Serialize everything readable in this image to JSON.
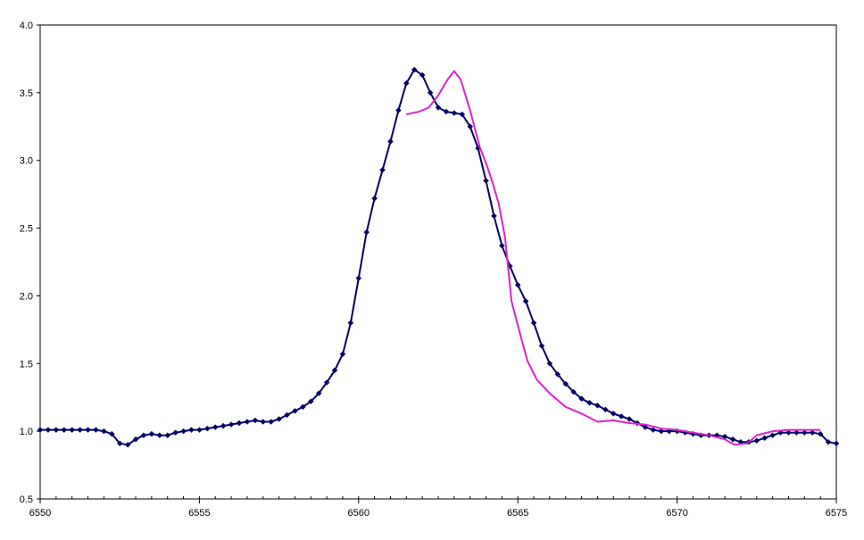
{
  "chart_data": {
    "type": "line",
    "title": "",
    "xlabel": "",
    "ylabel": "",
    "xlim": [
      6550,
      6575
    ],
    "ylim": [
      0.5,
      4.0
    ],
    "grid": false,
    "legend": "none",
    "x_ticks": [
      6550,
      6555,
      6560,
      6565,
      6570,
      6575
    ],
    "x_tick_labels": [
      "6550",
      "6555",
      "6560",
      "6565",
      "6570",
      "6575"
    ],
    "y_ticks": [
      0.5,
      1.0,
      1.5,
      2.0,
      2.5,
      3.0,
      3.5,
      4.0
    ],
    "y_tick_labels": [
      "0.5",
      "1.0",
      "1.5",
      "2.0",
      "2.5",
      "3.0",
      "3.5",
      "4.0"
    ],
    "x_minor_step": 0.5,
    "series": [
      {
        "color": "#000066",
        "markers": true,
        "points": [
          [
            6550.0,
            1.01
          ],
          [
            6550.25,
            1.01
          ],
          [
            6550.5,
            1.01
          ],
          [
            6550.75,
            1.01
          ],
          [
            6551.0,
            1.01
          ],
          [
            6551.25,
            1.01
          ],
          [
            6551.5,
            1.01
          ],
          [
            6551.75,
            1.01
          ],
          [
            6552.0,
            1.0
          ],
          [
            6552.25,
            0.98
          ],
          [
            6552.5,
            0.91
          ],
          [
            6552.75,
            0.9
          ],
          [
            6553.0,
            0.94
          ],
          [
            6553.25,
            0.97
          ],
          [
            6553.5,
            0.98
          ],
          [
            6553.75,
            0.97
          ],
          [
            6554.0,
            0.97
          ],
          [
            6554.25,
            0.99
          ],
          [
            6554.5,
            1.0
          ],
          [
            6554.75,
            1.01
          ],
          [
            6555.0,
            1.01
          ],
          [
            6555.25,
            1.02
          ],
          [
            6555.5,
            1.03
          ],
          [
            6555.75,
            1.04
          ],
          [
            6556.0,
            1.05
          ],
          [
            6556.25,
            1.06
          ],
          [
            6556.5,
            1.07
          ],
          [
            6556.75,
            1.08
          ],
          [
            6557.0,
            1.07
          ],
          [
            6557.25,
            1.07
          ],
          [
            6557.5,
            1.09
          ],
          [
            6557.75,
            1.12
          ],
          [
            6558.0,
            1.15
          ],
          [
            6558.25,
            1.18
          ],
          [
            6558.5,
            1.22
          ],
          [
            6558.75,
            1.28
          ],
          [
            6559.0,
            1.36
          ],
          [
            6559.25,
            1.45
          ],
          [
            6559.5,
            1.57
          ],
          [
            6559.75,
            1.8
          ],
          [
            6560.0,
            2.13
          ],
          [
            6560.25,
            2.47
          ],
          [
            6560.5,
            2.72
          ],
          [
            6560.75,
            2.93
          ],
          [
            6561.0,
            3.14
          ],
          [
            6561.25,
            3.37
          ],
          [
            6561.5,
            3.57
          ],
          [
            6561.75,
            3.67
          ],
          [
            6562.0,
            3.63
          ],
          [
            6562.25,
            3.5
          ],
          [
            6562.5,
            3.39
          ],
          [
            6562.75,
            3.36
          ],
          [
            6563.0,
            3.35
          ],
          [
            6563.25,
            3.34
          ],
          [
            6563.5,
            3.25
          ],
          [
            6563.75,
            3.09
          ],
          [
            6564.0,
            2.85
          ],
          [
            6564.25,
            2.59
          ],
          [
            6564.5,
            2.37
          ],
          [
            6564.75,
            2.22
          ],
          [
            6565.0,
            2.08
          ],
          [
            6565.25,
            1.96
          ],
          [
            6565.5,
            1.8
          ],
          [
            6565.75,
            1.63
          ],
          [
            6566.0,
            1.5
          ],
          [
            6566.25,
            1.42
          ],
          [
            6566.5,
            1.35
          ],
          [
            6566.75,
            1.29
          ],
          [
            6567.0,
            1.24
          ],
          [
            6567.25,
            1.21
          ],
          [
            6567.5,
            1.19
          ],
          [
            6567.75,
            1.16
          ],
          [
            6568.0,
            1.13
          ],
          [
            6568.25,
            1.11
          ],
          [
            6568.5,
            1.09
          ],
          [
            6568.75,
            1.06
          ],
          [
            6569.0,
            1.03
          ],
          [
            6569.25,
            1.01
          ],
          [
            6569.5,
            1.0
          ],
          [
            6569.75,
            1.0
          ],
          [
            6570.0,
            1.0
          ],
          [
            6570.25,
            0.99
          ],
          [
            6570.5,
            0.98
          ],
          [
            6570.75,
            0.97
          ],
          [
            6571.0,
            0.97
          ],
          [
            6571.25,
            0.97
          ],
          [
            6571.5,
            0.96
          ],
          [
            6571.75,
            0.94
          ],
          [
            6572.0,
            0.92
          ],
          [
            6572.25,
            0.92
          ],
          [
            6572.5,
            0.93
          ],
          [
            6572.75,
            0.95
          ],
          [
            6573.0,
            0.97
          ],
          [
            6573.25,
            0.99
          ],
          [
            6573.5,
            0.99
          ],
          [
            6573.75,
            0.99
          ],
          [
            6574.0,
            0.99
          ],
          [
            6574.25,
            0.99
          ],
          [
            6574.5,
            0.98
          ],
          [
            6574.75,
            0.92
          ],
          [
            6575.0,
            0.91
          ]
        ]
      },
      {
        "color": "#dd22cc",
        "markers": false,
        "points": [
          [
            6561.5,
            3.34
          ],
          [
            6561.9,
            3.36
          ],
          [
            6562.2,
            3.39
          ],
          [
            6562.5,
            3.48
          ],
          [
            6562.8,
            3.6
          ],
          [
            6563.0,
            3.66
          ],
          [
            6563.2,
            3.6
          ],
          [
            6563.5,
            3.37
          ],
          [
            6563.8,
            3.1
          ],
          [
            6564.0,
            2.98
          ],
          [
            6564.2,
            2.84
          ],
          [
            6564.4,
            2.68
          ],
          [
            6564.6,
            2.43
          ],
          [
            6564.8,
            1.96
          ],
          [
            6565.0,
            1.78
          ],
          [
            6565.3,
            1.52
          ],
          [
            6565.6,
            1.38
          ],
          [
            6566.0,
            1.28
          ],
          [
            6566.5,
            1.18
          ],
          [
            6567.0,
            1.13
          ],
          [
            6567.5,
            1.07
          ],
          [
            6568.0,
            1.08
          ],
          [
            6568.5,
            1.06
          ],
          [
            6569.0,
            1.05
          ],
          [
            6569.5,
            1.02
          ],
          [
            6570.0,
            1.01
          ],
          [
            6570.5,
            0.99
          ],
          [
            6571.0,
            0.97
          ],
          [
            6571.5,
            0.94
          ],
          [
            6571.8,
            0.9
          ],
          [
            6572.2,
            0.91
          ],
          [
            6572.5,
            0.97
          ],
          [
            6573.0,
            1.0
          ],
          [
            6573.5,
            1.01
          ],
          [
            6574.0,
            1.01
          ],
          [
            6574.5,
            1.01
          ]
        ]
      }
    ]
  }
}
